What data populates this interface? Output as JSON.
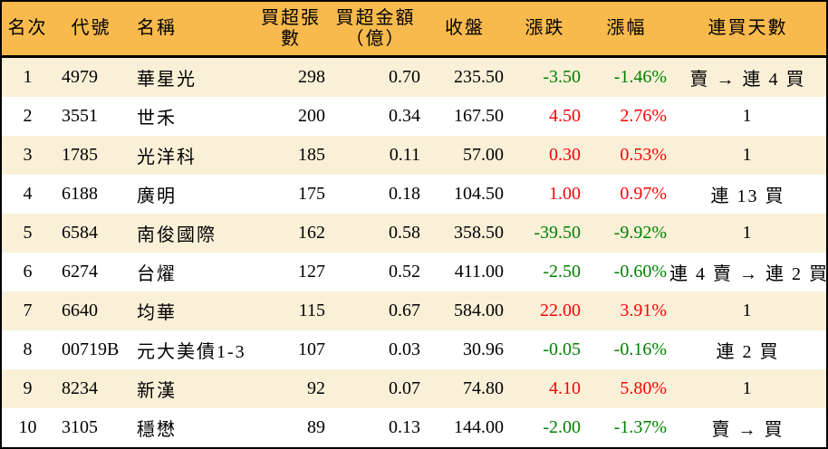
{
  "table": {
    "headers": [
      {
        "label": "名次"
      },
      {
        "label": "代號"
      },
      {
        "label": "名稱"
      },
      {
        "label": "買超張數"
      },
      {
        "label": "買超金額",
        "label2": "（億）"
      },
      {
        "label": "收盤"
      },
      {
        "label": "漲跌"
      },
      {
        "label": "漲幅"
      },
      {
        "label": "連買天數"
      }
    ],
    "rows": [
      {
        "rank": "1",
        "code": "4979",
        "name": "華星光",
        "volume": "298",
        "amount": "0.70",
        "close": "235.50",
        "change": "-3.50",
        "change_pct": "-1.46%",
        "streak": "賣 → 連 4 買",
        "trend": "down"
      },
      {
        "rank": "2",
        "code": "3551",
        "name": "世禾",
        "volume": "200",
        "amount": "0.34",
        "close": "167.50",
        "change": "4.50",
        "change_pct": "2.76%",
        "streak": "1",
        "trend": "up"
      },
      {
        "rank": "3",
        "code": "1785",
        "name": "光洋科",
        "volume": "185",
        "amount": "0.11",
        "close": "57.00",
        "change": "0.30",
        "change_pct": "0.53%",
        "streak": "1",
        "trend": "up"
      },
      {
        "rank": "4",
        "code": "6188",
        "name": "廣明",
        "volume": "175",
        "amount": "0.18",
        "close": "104.50",
        "change": "1.00",
        "change_pct": "0.97%",
        "streak": "連 13 買",
        "trend": "up"
      },
      {
        "rank": "5",
        "code": "6584",
        "name": "南俊國際",
        "volume": "162",
        "amount": "0.58",
        "close": "358.50",
        "change": "-39.50",
        "change_pct": "-9.92%",
        "streak": "1",
        "trend": "down"
      },
      {
        "rank": "6",
        "code": "6274",
        "name": "台燿",
        "volume": "127",
        "amount": "0.52",
        "close": "411.00",
        "change": "-2.50",
        "change_pct": "-0.60%",
        "streak": "連 4 賣 → 連 2 買",
        "trend": "down"
      },
      {
        "rank": "7",
        "code": "6640",
        "name": "均華",
        "volume": "115",
        "amount": "0.67",
        "close": "584.00",
        "change": "22.00",
        "change_pct": "3.91%",
        "streak": "1",
        "trend": "up"
      },
      {
        "rank": "8",
        "code": "00719B",
        "name": "元大美債1-3",
        "volume": "107",
        "amount": "0.03",
        "close": "30.96",
        "change": "-0.05",
        "change_pct": "-0.16%",
        "streak": "連 2 買",
        "trend": "down"
      },
      {
        "rank": "9",
        "code": "8234",
        "name": "新漢",
        "volume": "92",
        "amount": "0.07",
        "close": "74.80",
        "change": "4.10",
        "change_pct": "5.80%",
        "streak": "1",
        "trend": "up"
      },
      {
        "rank": "10",
        "code": "3105",
        "name": "穩懋",
        "volume": "89",
        "amount": "0.13",
        "close": "144.00",
        "change": "-2.00",
        "change_pct": "-1.37%",
        "streak": "賣 → 買",
        "trend": "down"
      }
    ]
  },
  "colors": {
    "header_bg": "#F8BA4D",
    "stripe_bg": "#FAF0D8",
    "row_bg": "#FFFFFF",
    "border": "#000000",
    "up": "#FB0207",
    "down": "#008000"
  }
}
